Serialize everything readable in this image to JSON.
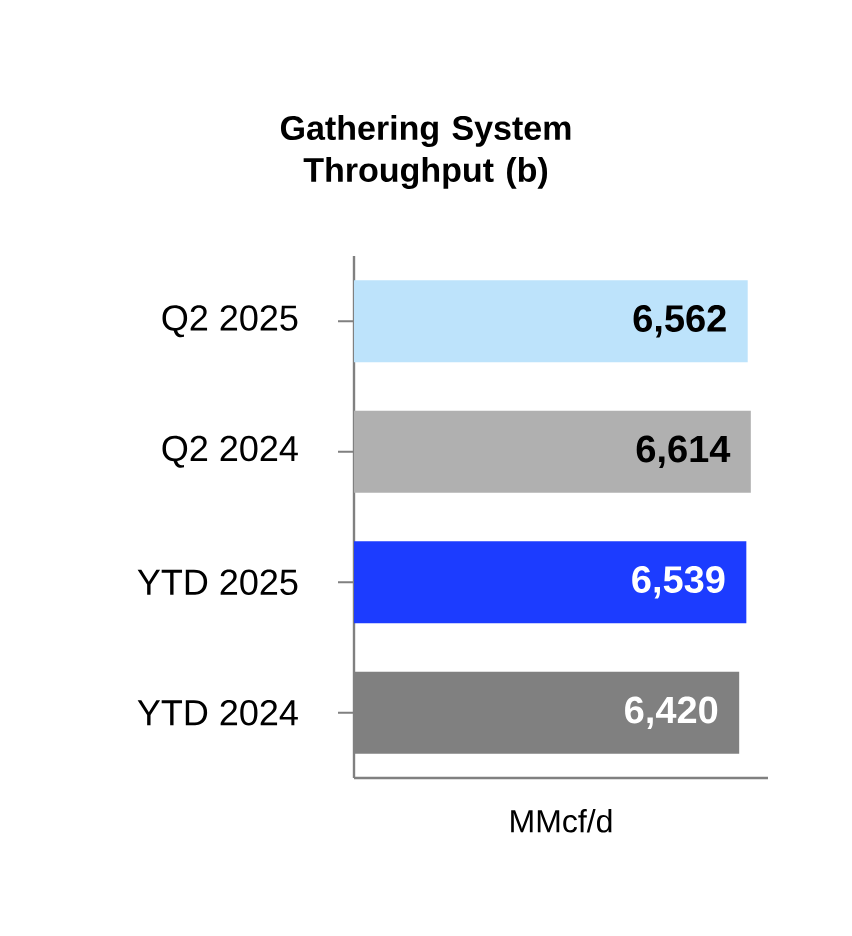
{
  "chart_data": {
    "type": "bar",
    "orientation": "horizontal",
    "title": "Gathering System Throughput (b)",
    "xlabel": "MMcf/d",
    "categories": [
      "Q2 2025",
      "Q2 2024",
      "YTD 2025",
      "YTD 2024"
    ],
    "values": [
      6562,
      6614,
      6539,
      6420
    ],
    "value_labels": [
      "6,562",
      "6,614",
      "6,539",
      "6,420"
    ],
    "colors": [
      "#bde3fb",
      "#b0b0b0",
      "#1c3cff",
      "#808080"
    ],
    "xlim": [
      0,
      6900
    ],
    "tick_labels": "y"
  }
}
